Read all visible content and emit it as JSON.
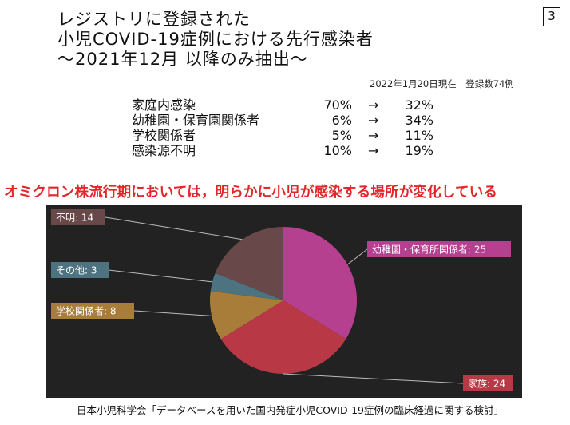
{
  "title": {
    "lines": [
      "レジストリに登録された",
      "小児COVID-19症例における先行感染者",
      "〜2021年12月 以降のみ抽出〜"
    ]
  },
  "page_number": "3",
  "meta": "2022年1月20日現在　登録数74例",
  "comparison": [
    {
      "source": "家庭内感染",
      "before": "70%",
      "arrow": "→",
      "after": "32%"
    },
    {
      "source": "幼稚園・保育園関係者",
      "before": "6%",
      "arrow": "→",
      "after": "34%"
    },
    {
      "source": "学校関係者",
      "before": "5%",
      "arrow": "→",
      "after": "11%"
    },
    {
      "source": "感染源不明",
      "before": "10%",
      "arrow": "→",
      "after": "19%"
    }
  ],
  "highlight": "オミクロン株流行期においては，明らかに小児が感染する場所が変化している",
  "chart_data": {
    "type": "pie",
    "title": "",
    "slices": [
      {
        "label": "幼稚園・保育所関係者: 25",
        "name": "幼稚園・保育所関係者",
        "value": 25,
        "color": "#b5408f"
      },
      {
        "label": "家族: 24",
        "name": "家族",
        "value": 24,
        "color": "#b93846"
      },
      {
        "label": "学校関係者: 8",
        "name": "学校関係者",
        "value": 8,
        "color": "#a87d3a"
      },
      {
        "label": "その他: 3",
        "name": "その他",
        "value": 3,
        "color": "#4d7380"
      },
      {
        "label": "不明: 14",
        "name": "不明",
        "value": 14,
        "color": "#684849"
      }
    ],
    "background": "#222222"
  },
  "footer": "日本小児科学会「データベースを用いた国内発症小児COVID-19症例の臨床経過に関する検討」"
}
